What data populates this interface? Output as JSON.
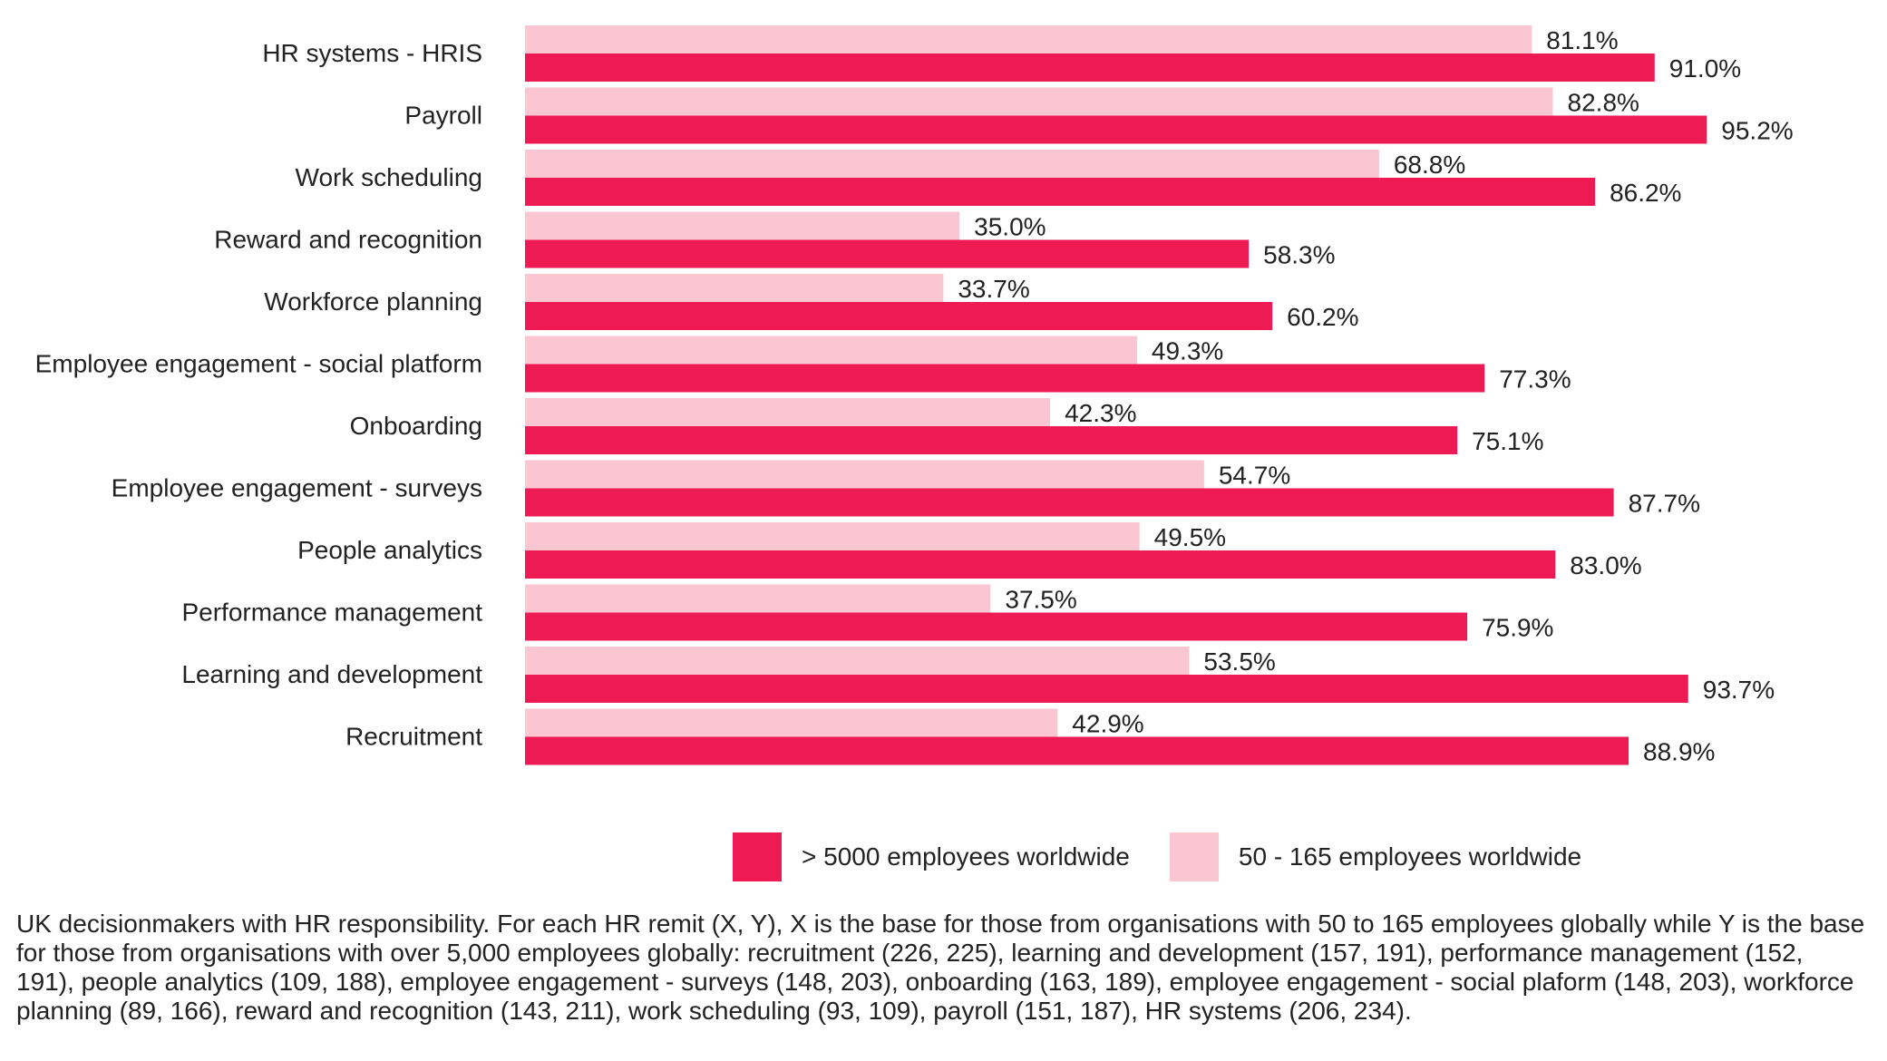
{
  "chart_data": {
    "type": "bar",
    "orientation": "horizontal",
    "categories": [
      "HR systems - HRIS",
      "Payroll",
      "Work scheduling",
      "Reward and recognition",
      "Workforce planning",
      "Employee engagement - social platform",
      "Onboarding",
      "Employee engagement - surveys",
      "People analytics",
      "Performance management",
      "Learning and development",
      "Recruitment"
    ],
    "series": [
      {
        "name": "50 - 165 employees worldwide",
        "color": "#f9c6d2",
        "values": [
          81.1,
          82.8,
          68.8,
          35.0,
          33.7,
          49.3,
          42.3,
          54.7,
          49.5,
          37.5,
          53.5,
          42.9
        ],
        "labels": [
          "81.1%",
          "82.8%",
          "68.8%",
          "35.0%",
          "33.7%",
          "49.3%",
          "42.3%",
          "54.7%",
          "49.5%",
          "37.5%",
          "53.5%",
          "42.9%"
        ]
      },
      {
        "name": "> 5000 employees worldwide",
        "color": "#ee1a53",
        "values": [
          91.0,
          95.2,
          86.2,
          58.3,
          60.2,
          77.3,
          75.1,
          87.7,
          83.0,
          75.9,
          93.7,
          88.9
        ],
        "labels": [
          "91.0%",
          "95.2%",
          "86.2%",
          "58.3%",
          "60.2%",
          "77.3%",
          "75.1%",
          "87.7%",
          "83.0%",
          "75.9%",
          "93.7%",
          "88.9%"
        ]
      }
    ],
    "xlim": [
      0,
      100
    ],
    "grid": false
  },
  "legend": {
    "items": [
      {
        "label": "> 5000 employees worldwide",
        "color": "#ee1a53"
      },
      {
        "label": "50 - 165 employees worldwide",
        "color": "#f9c6d2"
      }
    ]
  },
  "footnote": "UK decisionmakers with HR responsibility. For each HR remit (X, Y), X is the base for those from organisations with 50 to 165 employees globally while Y is the base for those from organisations with over 5,000 employees globally: recruitment (226, 225), learning and development (157, 191), performance management (152, 191), people analytics (109, 188), employee engagement - surveys (148, 203), onboarding (163, 189), employee engagement - social plaform (148, 203), workforce planning (89, 166), reward and recognition (143, 211), work scheduling (93, 109), payroll (151, 187), HR systems (206, 234)."
}
